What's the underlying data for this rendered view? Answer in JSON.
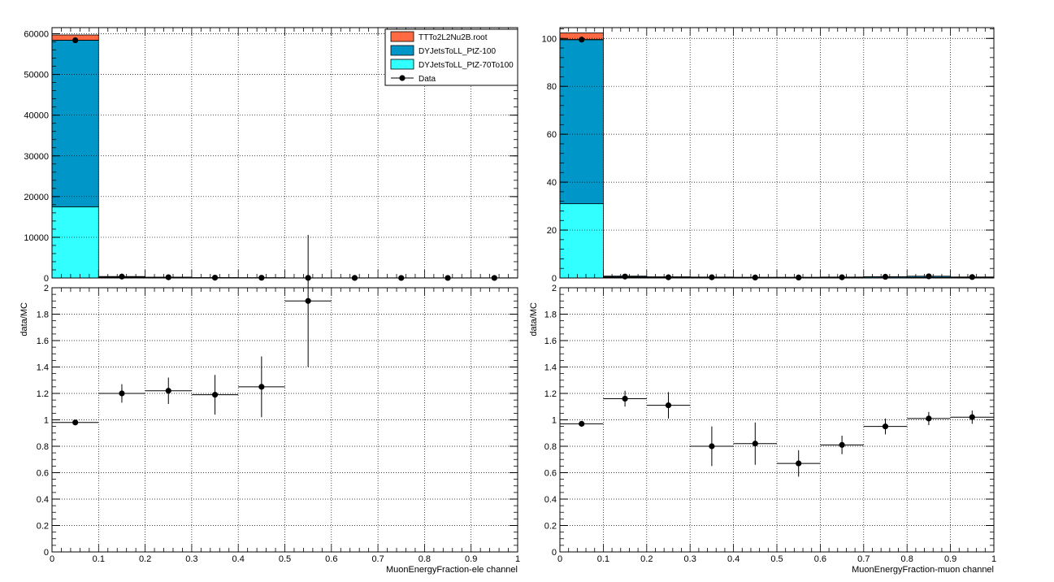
{
  "colors": {
    "ttbar": "#ff6a43",
    "dy100": "#0096c8",
    "dy70": "#32ffff",
    "data": "#000000",
    "grid": "#000000"
  },
  "legend": {
    "entries": [
      {
        "label": "TTTo2L2Nu2B.root",
        "color": "#ff6a43",
        "kind": "box"
      },
      {
        "label": "DYJetsToLL_PtZ-100",
        "color": "#0096c8",
        "kind": "box"
      },
      {
        "label": "DYJetsToLL_PtZ-70To100",
        "color": "#32ffff",
        "kind": "box"
      },
      {
        "label": "Data",
        "color": "#000000",
        "kind": "marker"
      }
    ]
  },
  "chart_data": [
    {
      "type": "bar",
      "stacked": true,
      "name": "ele-top",
      "bin_edges": [
        0,
        0.1,
        0.2,
        0.3,
        0.4,
        0.5,
        0.6,
        0.7,
        0.8,
        0.9,
        1.0
      ],
      "series": [
        {
          "name": "DYJetsToLL_PtZ-70To100",
          "values": [
            17500,
            120,
            60,
            30,
            20,
            10,
            5,
            5,
            5,
            5
          ]
        },
        {
          "name": "DYJetsToLL_PtZ-100",
          "values": [
            40900,
            180,
            90,
            40,
            25,
            10,
            5,
            5,
            5,
            5
          ]
        },
        {
          "name": "TTTo2L2Nu2B.root",
          "values": [
            1300,
            20,
            10,
            5,
            5,
            0,
            0,
            0,
            0,
            0
          ]
        }
      ],
      "data": [
        58400,
        350,
        180,
        80,
        55,
        30,
        20,
        15,
        15,
        15
      ],
      "ylim": [
        0,
        61500
      ],
      "yticks": [
        0,
        10000,
        20000,
        30000,
        40000,
        50000,
        60000
      ],
      "grid": true,
      "legend_position": "top-right"
    },
    {
      "type": "scatter",
      "name": "ele-ratio",
      "xlabel": "MuonEnergyFraction-ele channel",
      "ylabel": "data/MC",
      "x": [
        0.05,
        0.15,
        0.25,
        0.35,
        0.45,
        0.55
      ],
      "y": [
        0.98,
        1.2,
        1.22,
        1.19,
        1.25,
        1.9
      ],
      "yerr": [
        0.01,
        0.07,
        0.1,
        0.15,
        0.23,
        0.5
      ],
      "xerr": 0.05,
      "xlim": [
        0,
        1
      ],
      "ylim": [
        0,
        2
      ],
      "xticks": [
        "0",
        "0.1",
        "0.2",
        "0.3",
        "0.4",
        "0.5",
        "0.6",
        "0.7",
        "0.8",
        "0.9",
        "1"
      ],
      "yticks": [
        "0",
        "0.2",
        "0.4",
        "0.6",
        "0.8",
        "1",
        "1.2",
        "1.4",
        "1.6",
        "1.8",
        "2"
      ],
      "grid": true
    },
    {
      "type": "bar",
      "stacked": true,
      "name": "muon-top",
      "bin_edges": [
        0,
        0.1,
        0.2,
        0.3,
        0.4,
        0.5,
        0.6,
        0.7,
        0.8,
        0.9,
        1.0
      ],
      "series": [
        {
          "name": "DYJetsToLL_PtZ-70To100",
          "values": [
            31,
            0.3,
            0.2,
            0.2,
            0.1,
            0.1,
            0.1,
            0.1,
            0.2,
            0.1
          ]
        },
        {
          "name": "DYJetsToLL_PtZ-100",
          "values": [
            68.5,
            0.4,
            0.3,
            0.2,
            0.2,
            0.2,
            0.3,
            0.4,
            0.5,
            0.3
          ]
        },
        {
          "name": "TTTo2L2Nu2B.root",
          "values": [
            2.8,
            0.1,
            0.0,
            0.0,
            0.0,
            0.0,
            0.0,
            0.0,
            0.0,
            0.0
          ]
        }
      ],
      "data": [
        99.5,
        0.6,
        0.3,
        0.3,
        0.2,
        0.2,
        0.3,
        0.5,
        0.7,
        0.4
      ],
      "ylim": [
        0,
        104.5
      ],
      "yticks": [
        0,
        20,
        40,
        60,
        80,
        100
      ],
      "grid": true
    },
    {
      "type": "scatter",
      "name": "muon-ratio",
      "xlabel": "MuonEnergyFraction-muon channel",
      "ylabel": "data/MC",
      "x": [
        0.05,
        0.15,
        0.25,
        0.35,
        0.45,
        0.55,
        0.65,
        0.75,
        0.85,
        0.95
      ],
      "y": [
        0.97,
        1.16,
        1.11,
        0.8,
        0.82,
        0.67,
        0.81,
        0.95,
        1.01,
        1.02
      ],
      "yerr": [
        0.02,
        0.06,
        0.1,
        0.15,
        0.16,
        0.1,
        0.07,
        0.06,
        0.05,
        0.05
      ],
      "xerr": 0.05,
      "xlim": [
        0,
        1
      ],
      "ylim": [
        0,
        2
      ],
      "xticks": [
        "0",
        "0.1",
        "0.2",
        "0.3",
        "0.4",
        "0.5",
        "0.6",
        "0.7",
        "0.8",
        "0.9",
        "1"
      ],
      "yticks": [
        "0",
        "0.2",
        "0.4",
        "0.6",
        "0.8",
        "1",
        "1.2",
        "1.4",
        "1.6",
        "1.8",
        "2"
      ],
      "grid": true
    }
  ]
}
